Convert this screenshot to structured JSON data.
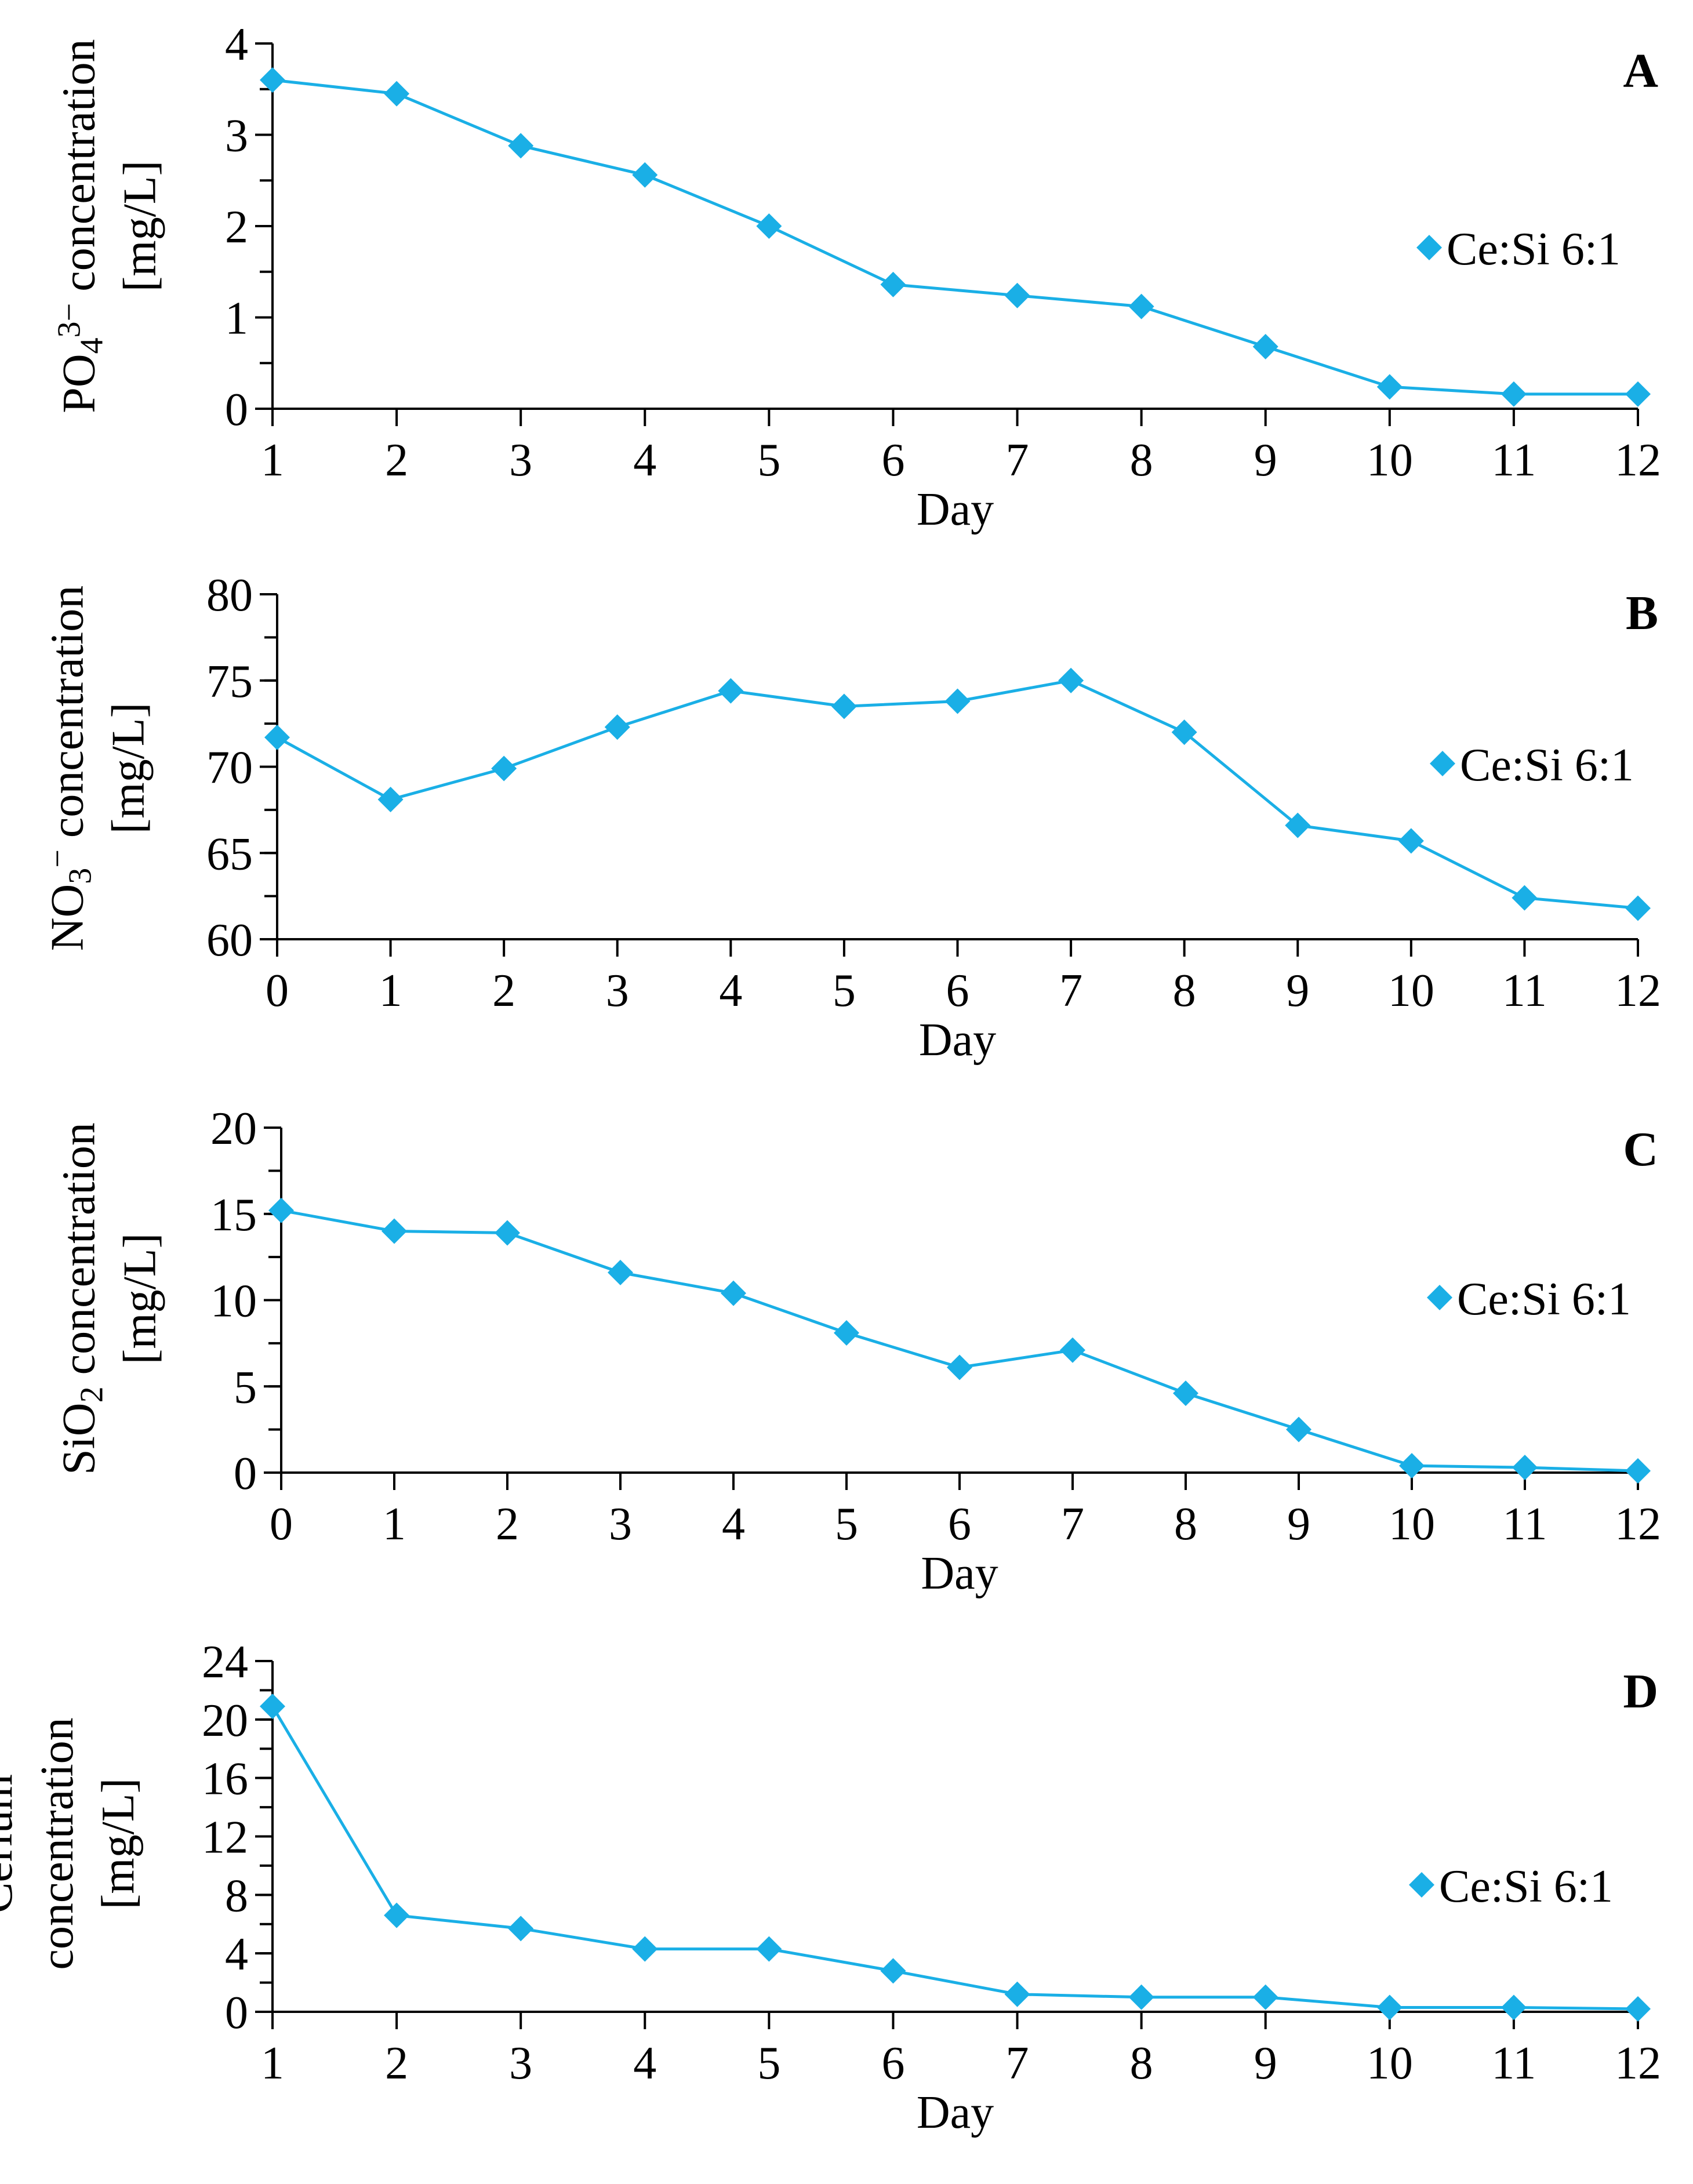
{
  "figure": {
    "title": ""
  },
  "legend_label": "Ce:Si 6:1",
  "colors": {
    "series": "#1aafe6",
    "axis": "#000000"
  },
  "chart_data": [
    {
      "type": "line",
      "panel": "A",
      "title": "",
      "xlabel": "Day",
      "ylabel": {
        "lines": [
          [
            {
              "t": "PO"
            },
            {
              "t": "4",
              "sub": true
            },
            {
              "t": "3−",
              "sup": true
            },
            {
              "t": " concentration"
            }
          ],
          [
            {
              "t": "[mg/L]"
            }
          ]
        ]
      },
      "x": [
        1,
        2,
        3,
        4,
        5,
        6,
        7,
        8,
        9,
        10,
        11,
        12
      ],
      "xlim": [
        1,
        12
      ],
      "ylim": [
        0,
        4
      ],
      "yticks": [
        0,
        1,
        2,
        3,
        4
      ],
      "yminor": 0.5,
      "grid": false,
      "legend_position": "right",
      "series": [
        {
          "name": "Ce:Si 6:1",
          "values": [
            3.6,
            3.45,
            2.88,
            2.56,
            2.0,
            1.36,
            1.24,
            1.12,
            0.68,
            0.24,
            0.16,
            0.16
          ]
        }
      ]
    },
    {
      "type": "line",
      "panel": "B",
      "title": "",
      "xlabel": "Day",
      "ylabel": {
        "lines": [
          [
            {
              "t": "NO"
            },
            {
              "t": "3",
              "sub": true
            },
            {
              "t": "−",
              "sup": true
            },
            {
              "t": " concentration"
            }
          ],
          [
            {
              "t": "[mg/L]"
            }
          ]
        ]
      },
      "x": [
        0,
        1,
        2,
        3,
        4,
        5,
        6,
        7,
        8,
        9,
        10,
        11,
        12
      ],
      "xlim": [
        0,
        12
      ],
      "ylim": [
        60,
        80
      ],
      "yticks": [
        60,
        65,
        70,
        75,
        80
      ],
      "yminor": 2.5,
      "grid": false,
      "legend_position": "right",
      "series": [
        {
          "name": "Ce:Si 6:1",
          "values": [
            71.7,
            68.1,
            69.9,
            72.3,
            74.4,
            73.5,
            73.8,
            75.0,
            72.0,
            66.6,
            65.7,
            62.4,
            61.8
          ]
        }
      ]
    },
    {
      "type": "line",
      "panel": "C",
      "title": "",
      "xlabel": "Day",
      "ylabel": {
        "lines": [
          [
            {
              "t": "SiO"
            },
            {
              "t": "2",
              "sub": true
            },
            {
              "t": " concentration"
            }
          ],
          [
            {
              "t": "[mg/L]"
            }
          ]
        ]
      },
      "x": [
        0,
        1,
        2,
        3,
        4,
        5,
        6,
        7,
        8,
        9,
        10,
        11,
        12
      ],
      "xlim": [
        0,
        12
      ],
      "ylim": [
        0,
        20
      ],
      "yticks": [
        0,
        5,
        10,
        15,
        20
      ],
      "yminor": 2.5,
      "grid": false,
      "legend_position": "right",
      "series": [
        {
          "name": "Ce:Si 6:1",
          "values": [
            15.2,
            14.0,
            13.9,
            11.6,
            10.4,
            8.1,
            6.1,
            7.1,
            4.6,
            2.5,
            0.4,
            0.3,
            0.1
          ]
        }
      ]
    },
    {
      "type": "line",
      "panel": "D",
      "title": "",
      "xlabel": "Day",
      "ylabel": {
        "lines": [
          [
            {
              "t": "Cerium"
            }
          ],
          [
            {
              "t": "concentration"
            }
          ],
          [
            {
              "t": "[mg/L]"
            }
          ]
        ]
      },
      "x": [
        1,
        2,
        3,
        4,
        5,
        6,
        7,
        8,
        9,
        10,
        11,
        12
      ],
      "xlim": [
        1,
        12
      ],
      "ylim": [
        0,
        24
      ],
      "yticks": [
        0,
        4,
        8,
        12,
        16,
        20,
        24
      ],
      "yminor": 2,
      "grid": false,
      "legend_position": "right",
      "series": [
        {
          "name": "Ce:Si 6:1",
          "values": [
            20.9,
            6.6,
            5.7,
            4.3,
            4.3,
            2.8,
            1.2,
            1.0,
            1.0,
            0.3,
            0.3,
            0.2
          ]
        }
      ]
    }
  ]
}
